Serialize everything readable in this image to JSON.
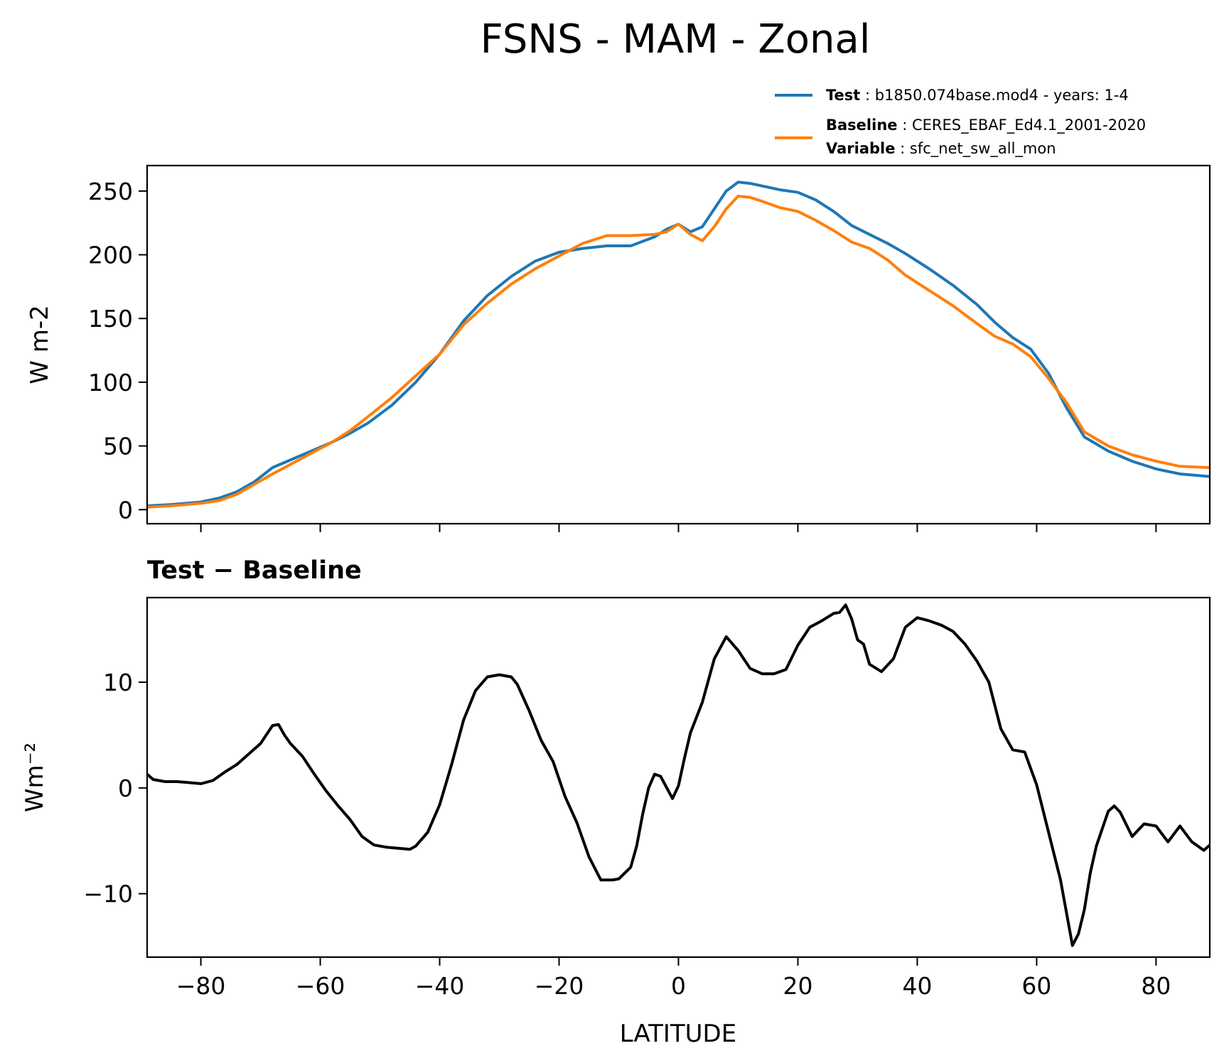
{
  "figure": {
    "title": "FSNS - MAM - Zonal"
  },
  "legend": {
    "test_key": "Test",
    "test_value": ": b1850.074base.mod4 - years: 1-4",
    "baseline_key": "Baseline",
    "baseline_value": ": CERES_EBAF_Ed4.1_2001-2020",
    "variable_key": "Variable",
    "variable_value": ": sfc_net_sw_all_mon"
  },
  "colors": {
    "test": "#1f77b4",
    "baseline": "#ff7f0e",
    "diff": "#000000"
  },
  "chart_data": [
    {
      "type": "line",
      "title": "",
      "xlabel": "",
      "ylabel": "W m-2",
      "xlim": [
        -89,
        89
      ],
      "ylim": [
        -11,
        270
      ],
      "yticks": [
        0,
        50,
        100,
        150,
        200,
        250
      ],
      "xticks": [
        -80,
        -60,
        -40,
        -20,
        0,
        20,
        40,
        60,
        80
      ],
      "show_xticklabels": false,
      "legend_position": "above-right",
      "x": [
        -89,
        -85,
        -80,
        -77,
        -74,
        -71,
        -68,
        -66,
        -62,
        -58,
        -55,
        -52,
        -48,
        -44,
        -40,
        -36,
        -32,
        -28,
        -24,
        -20,
        -16,
        -12,
        -8,
        -4,
        -2,
        0,
        2,
        4,
        6,
        8,
        10,
        12,
        14,
        17,
        20,
        23,
        26,
        29,
        32,
        35,
        38,
        42,
        46,
        50,
        53,
        56,
        59,
        62,
        65,
        68,
        72,
        76,
        80,
        84,
        89
      ],
      "series": [
        {
          "name": "Test",
          "values": [
            3,
            4,
            6,
            9,
            14,
            22,
            33,
            37,
            45,
            53,
            60,
            68,
            82,
            100,
            122,
            148,
            168,
            183,
            195,
            202,
            205,
            207,
            207,
            214,
            220,
            224,
            218,
            222,
            236,
            250,
            257,
            256,
            254,
            251,
            249,
            243,
            234,
            223,
            216,
            209,
            201,
            189,
            176,
            161,
            147,
            135,
            126,
            107,
            80,
            57,
            46,
            38,
            32,
            28,
            26
          ],
          "color_key": "test"
        },
        {
          "name": "Baseline",
          "values": [
            2,
            3,
            5,
            7,
            12,
            20,
            28,
            33,
            43,
            53,
            62,
            73,
            88,
            105,
            122,
            145,
            162,
            177,
            189,
            199,
            209,
            215,
            215,
            216,
            218,
            224,
            216,
            211,
            222,
            236,
            246,
            245,
            242,
            237,
            234,
            227,
            219,
            210,
            205,
            196,
            184,
            172,
            160,
            146,
            136,
            130,
            120,
            103,
            84,
            61,
            50,
            43,
            38,
            34,
            33
          ],
          "color_key": "baseline"
        }
      ]
    },
    {
      "type": "line",
      "title": "Test − Baseline",
      "xlabel": "LATITUDE",
      "ylabel": "Wm⁻²",
      "xlim": [
        -89,
        89
      ],
      "ylim": [
        -16,
        18
      ],
      "yticks": [
        -10,
        0,
        10
      ],
      "xticks": [
        -80,
        -60,
        -40,
        -20,
        0,
        20,
        40,
        60,
        80
      ],
      "x": [
        -89,
        -88,
        -86,
        -84,
        -82,
        -80,
        -78,
        -76,
        -74,
        -72,
        -70,
        -68,
        -67,
        -66,
        -65,
        -63,
        -61,
        -59,
        -57,
        -55,
        -53,
        -51,
        -49,
        -45,
        -44,
        -42,
        -40,
        -38,
        -36,
        -34,
        -32,
        -30,
        -28,
        -27,
        -25,
        -23,
        -21,
        -19,
        -17,
        -15,
        -13,
        -11,
        -10,
        -8,
        -7,
        -6,
        -5,
        -4,
        -3,
        -1,
        0,
        1,
        2,
        4,
        6,
        8,
        10,
        12,
        14,
        16,
        18,
        20,
        22,
        24,
        26,
        27,
        28,
        29,
        30,
        31,
        32,
        34,
        36,
        38,
        40,
        42,
        44,
        46,
        48,
        50,
        52,
        54,
        56,
        58,
        60,
        62,
        64,
        66,
        67,
        68,
        69,
        70,
        72,
        73,
        74,
        76,
        78,
        80,
        82,
        84,
        86,
        88,
        89
      ],
      "series": [
        {
          "name": "",
          "values": [
            1.3,
            0.8,
            0.6,
            0.6,
            0.5,
            0.4,
            0.7,
            1.5,
            2.2,
            3.2,
            4.2,
            5.9,
            6.0,
            5.0,
            4.2,
            3.0,
            1.3,
            -0.3,
            -1.7,
            -3.0,
            -4.6,
            -5.4,
            -5.6,
            -5.8,
            -5.5,
            -4.2,
            -1.6,
            2.2,
            6.4,
            9.2,
            10.5,
            10.7,
            10.5,
            9.8,
            7.3,
            4.5,
            2.5,
            -0.8,
            -3.3,
            -6.5,
            -8.7,
            -8.7,
            -8.6,
            -7.5,
            -5.5,
            -2.5,
            0.0,
            1.3,
            1.1,
            -1.0,
            0.2,
            2.8,
            5.2,
            8.1,
            12.2,
            14.3,
            13.0,
            11.3,
            10.8,
            10.8,
            11.2,
            13.5,
            15.2,
            15.8,
            16.5,
            16.6,
            17.3,
            16.0,
            14.0,
            13.6,
            11.7,
            11.0,
            12.2,
            15.2,
            16.1,
            15.8,
            15.4,
            14.8,
            13.6,
            12.0,
            10.0,
            5.6,
            3.6,
            3.4,
            0.3,
            -4.2,
            -8.7,
            -14.9,
            -13.8,
            -11.5,
            -8.0,
            -5.5,
            -2.2,
            -1.7,
            -2.3,
            -4.6,
            -3.4,
            -3.6,
            -5.1,
            -3.6,
            -5.1,
            -5.9,
            -5.4
          ],
          "color_key": "diff"
        }
      ]
    }
  ]
}
